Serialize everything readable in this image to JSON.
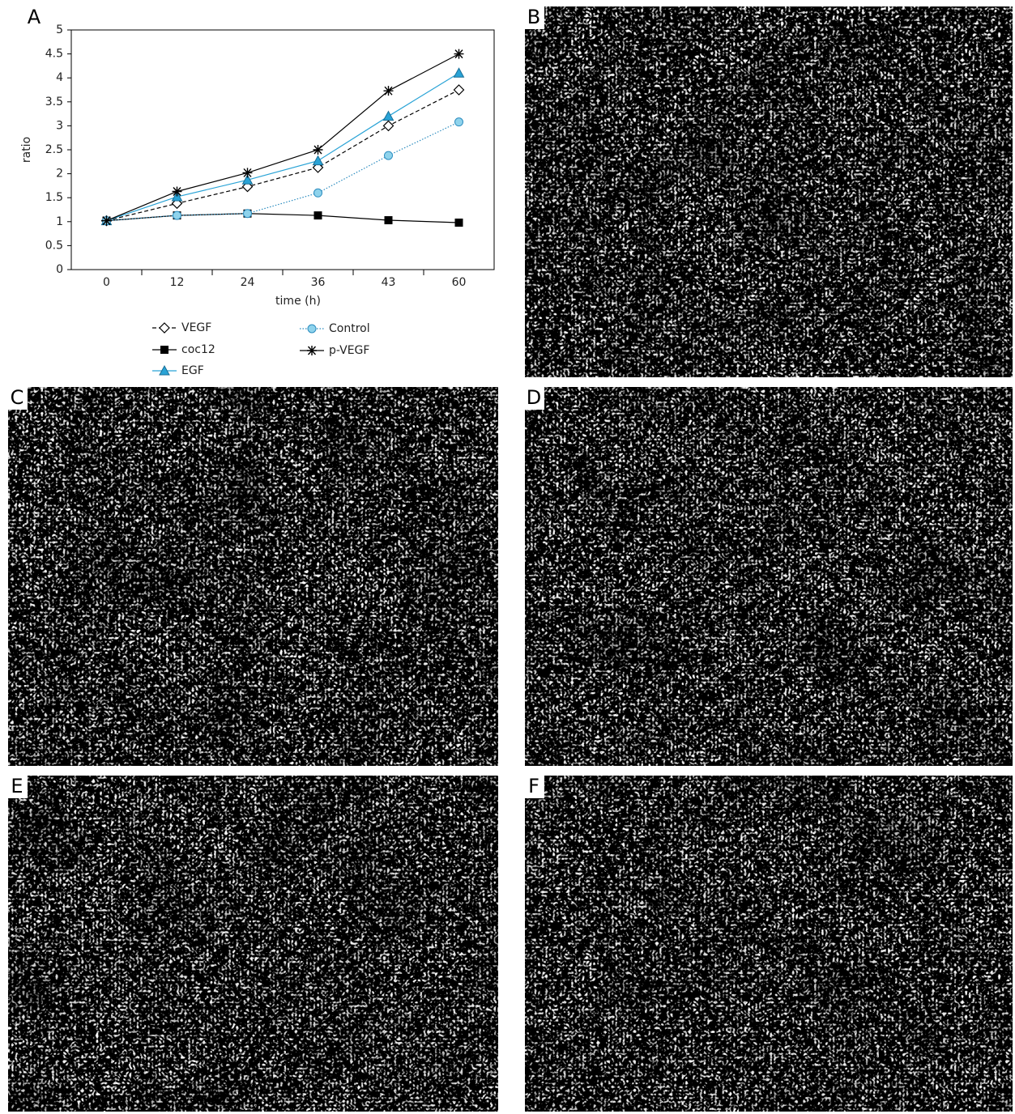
{
  "chart_data": {
    "type": "line",
    "panel": "A",
    "y_label": "ratio",
    "x_label": "time (h)",
    "categories": [
      "0",
      "12",
      "24",
      "36",
      "43",
      "60"
    ],
    "ylim": [
      0,
      5
    ],
    "yticks": [
      0,
      0.5,
      1,
      1.5,
      2,
      2.5,
      3,
      3.5,
      4,
      4.5,
      5
    ],
    "series": [
      {
        "name": "VEGF",
        "color": "#000000",
        "dash": "dashed",
        "marker": "diamond",
        "values": [
          1.02,
          1.38,
          1.73,
          2.13,
          3.0,
          3.75
        ]
      },
      {
        "name": "coc12",
        "color": "#000000",
        "dash": "solid",
        "marker": "square",
        "values": [
          1.02,
          1.13,
          1.17,
          1.13,
          1.03,
          0.98
        ]
      },
      {
        "name": "EGF",
        "color": "#29a3d6",
        "dash": "solid",
        "marker": "triangle",
        "values": [
          1.02,
          1.52,
          1.87,
          2.27,
          3.2,
          4.1
        ]
      },
      {
        "name": "Control",
        "color": "#2b8cbf",
        "dash": "dotted",
        "marker": "circle",
        "values": [
          1.02,
          1.13,
          1.17,
          1.6,
          2.38,
          3.08
        ]
      },
      {
        "name": "p-VEGF",
        "color": "#000000",
        "dash": "solid",
        "marker": "star",
        "values": [
          1.02,
          1.63,
          2.02,
          2.5,
          3.73,
          4.5
        ]
      }
    ]
  },
  "panel_labels": [
    "B",
    "C",
    "D",
    "E",
    "F"
  ]
}
